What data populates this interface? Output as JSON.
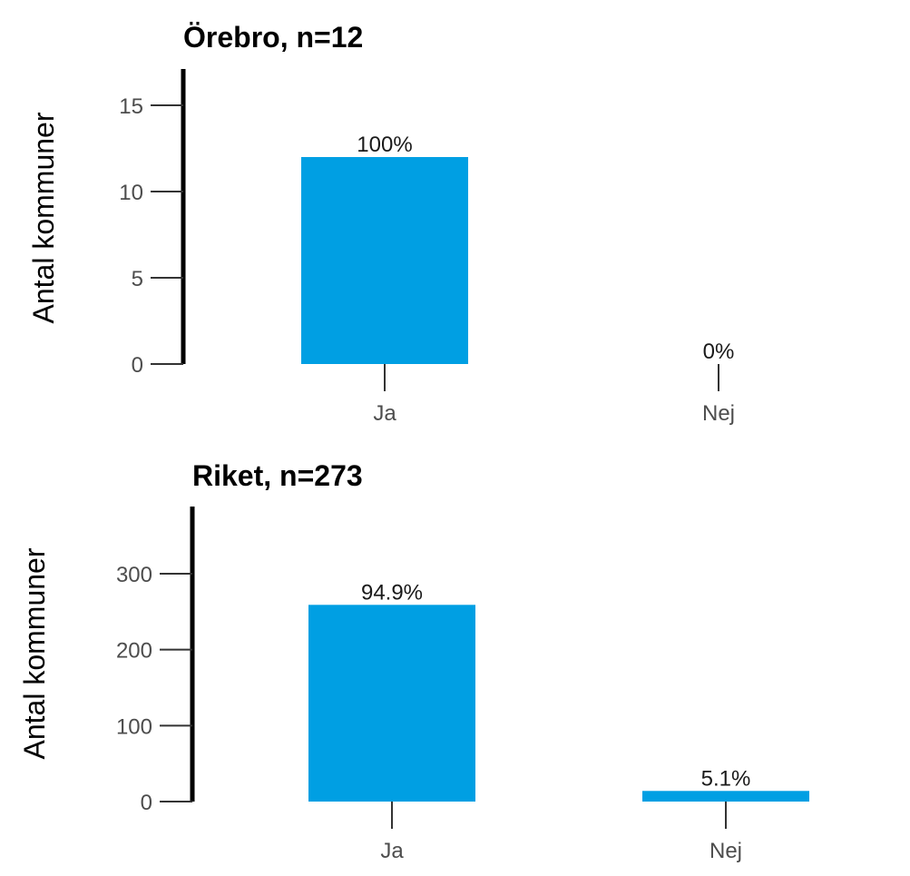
{
  "chart_data": [
    {
      "type": "bar",
      "title": "Örebro, n=12",
      "ylabel": "Antal kommuner",
      "xlabel": "",
      "categories": [
        "Ja",
        "Nej"
      ],
      "values": [
        12,
        0
      ],
      "data_labels": [
        "100%",
        "0%"
      ],
      "yticks": [
        0,
        5,
        10,
        15
      ],
      "ylim": [
        0,
        17
      ],
      "grid": false,
      "bar_color": "#009fe3"
    },
    {
      "type": "bar",
      "title": "Riket, n=273",
      "ylabel": "Antal kommuner",
      "xlabel": "",
      "categories": [
        "Ja",
        "Nej"
      ],
      "values": [
        259,
        14
      ],
      "data_labels": [
        "94.9%",
        "5.1%"
      ],
      "yticks": [
        0,
        100,
        200,
        300
      ],
      "ylim": [
        0,
        390
      ],
      "grid": false,
      "bar_color": "#009fe3"
    }
  ]
}
